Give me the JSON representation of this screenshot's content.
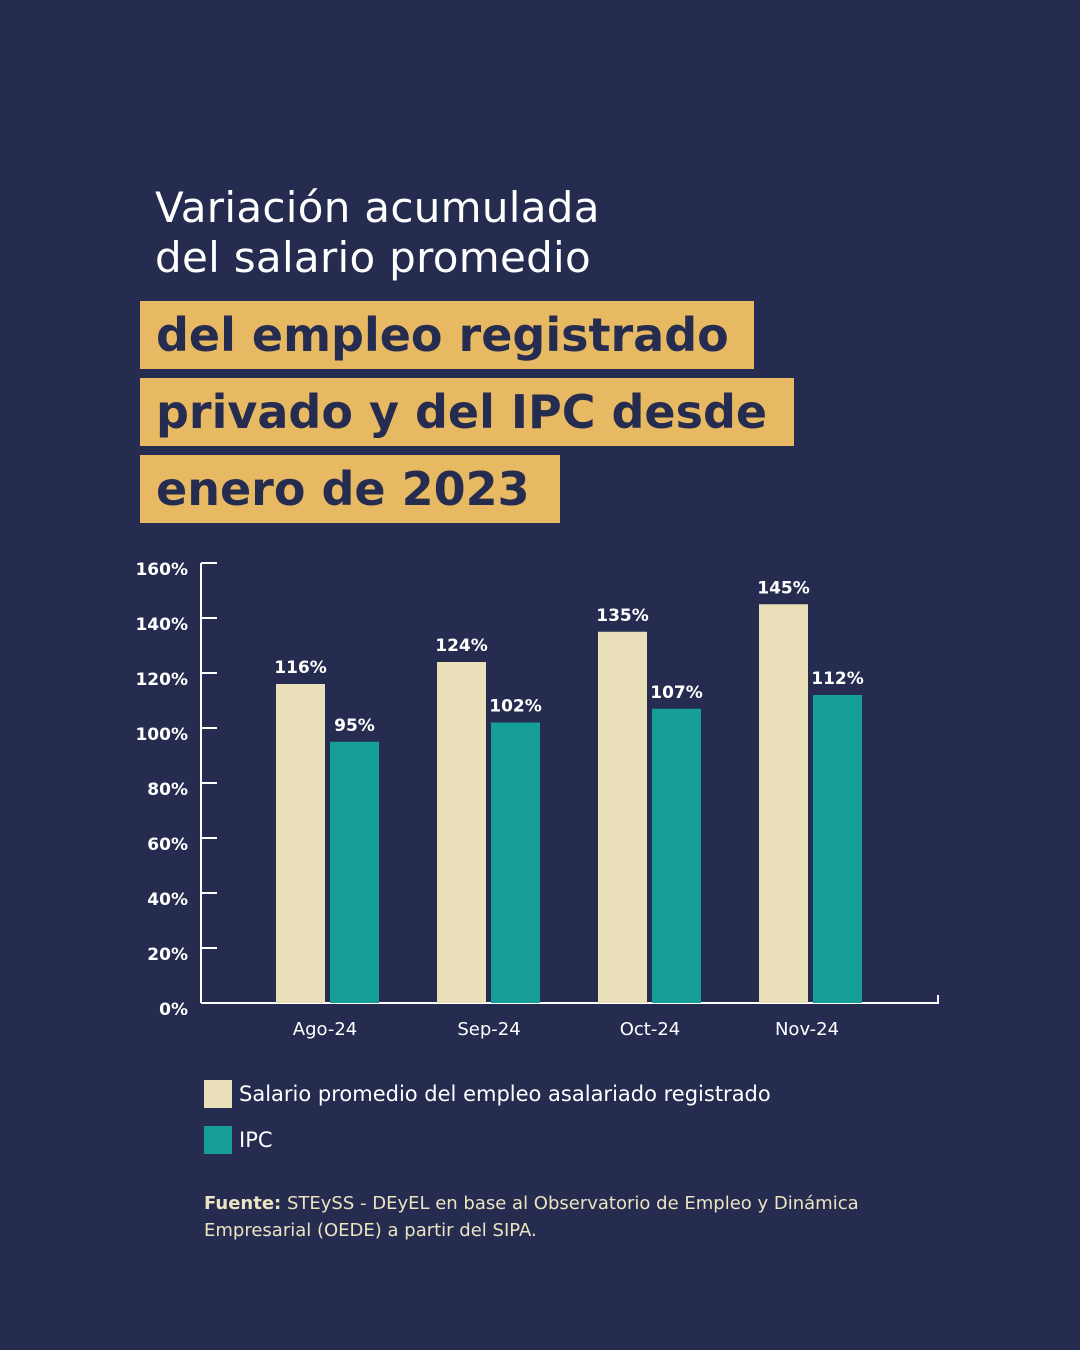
{
  "header": {
    "title_line1": "Variación acumulada",
    "title_line2": "del salario promedio",
    "highlight_line1": "del empleo registrado",
    "highlight_line2": "privado y del IPC desde",
    "highlight_line3": "enero de 2023"
  },
  "colors": {
    "background": "#252c4f",
    "highlight": "#e6b962",
    "salario": "#e9dfb8",
    "ipc": "#169e98"
  },
  "chart_data": {
    "type": "bar",
    "categories": [
      "Ago-24",
      "Sep-24",
      "Oct-24",
      "Nov-24"
    ],
    "series": [
      {
        "name": "Salario promedio del empleo asalariado registrado",
        "values": [
          116,
          124,
          135,
          145
        ],
        "labels": [
          "116%",
          "124%",
          "135%",
          "145%"
        ],
        "color": "#e9dfb8"
      },
      {
        "name": "IPC",
        "values": [
          95,
          102,
          107,
          112
        ],
        "labels": [
          "95%",
          "102%",
          "107%",
          "112%"
        ],
        "color": "#169e98"
      }
    ],
    "yticks": [
      0,
      20,
      40,
      60,
      80,
      100,
      120,
      140,
      160
    ],
    "ytick_labels": [
      "0%",
      "20%",
      "40%",
      "60%",
      "80%",
      "100%",
      "120%",
      "140%",
      "160%"
    ],
    "ylim": [
      0,
      160
    ],
    "grid": false,
    "legend": "bottom"
  },
  "legend": {
    "items": [
      {
        "label": "Salario promedio del empleo asalariado registrado"
      },
      {
        "label": "IPC"
      }
    ]
  },
  "source": {
    "bold": "Fuente:",
    "text": " STEySS - DEyEL en base al Observatorio de Empleo y Dinámica Empresarial (OEDE) a partir del SIPA."
  }
}
